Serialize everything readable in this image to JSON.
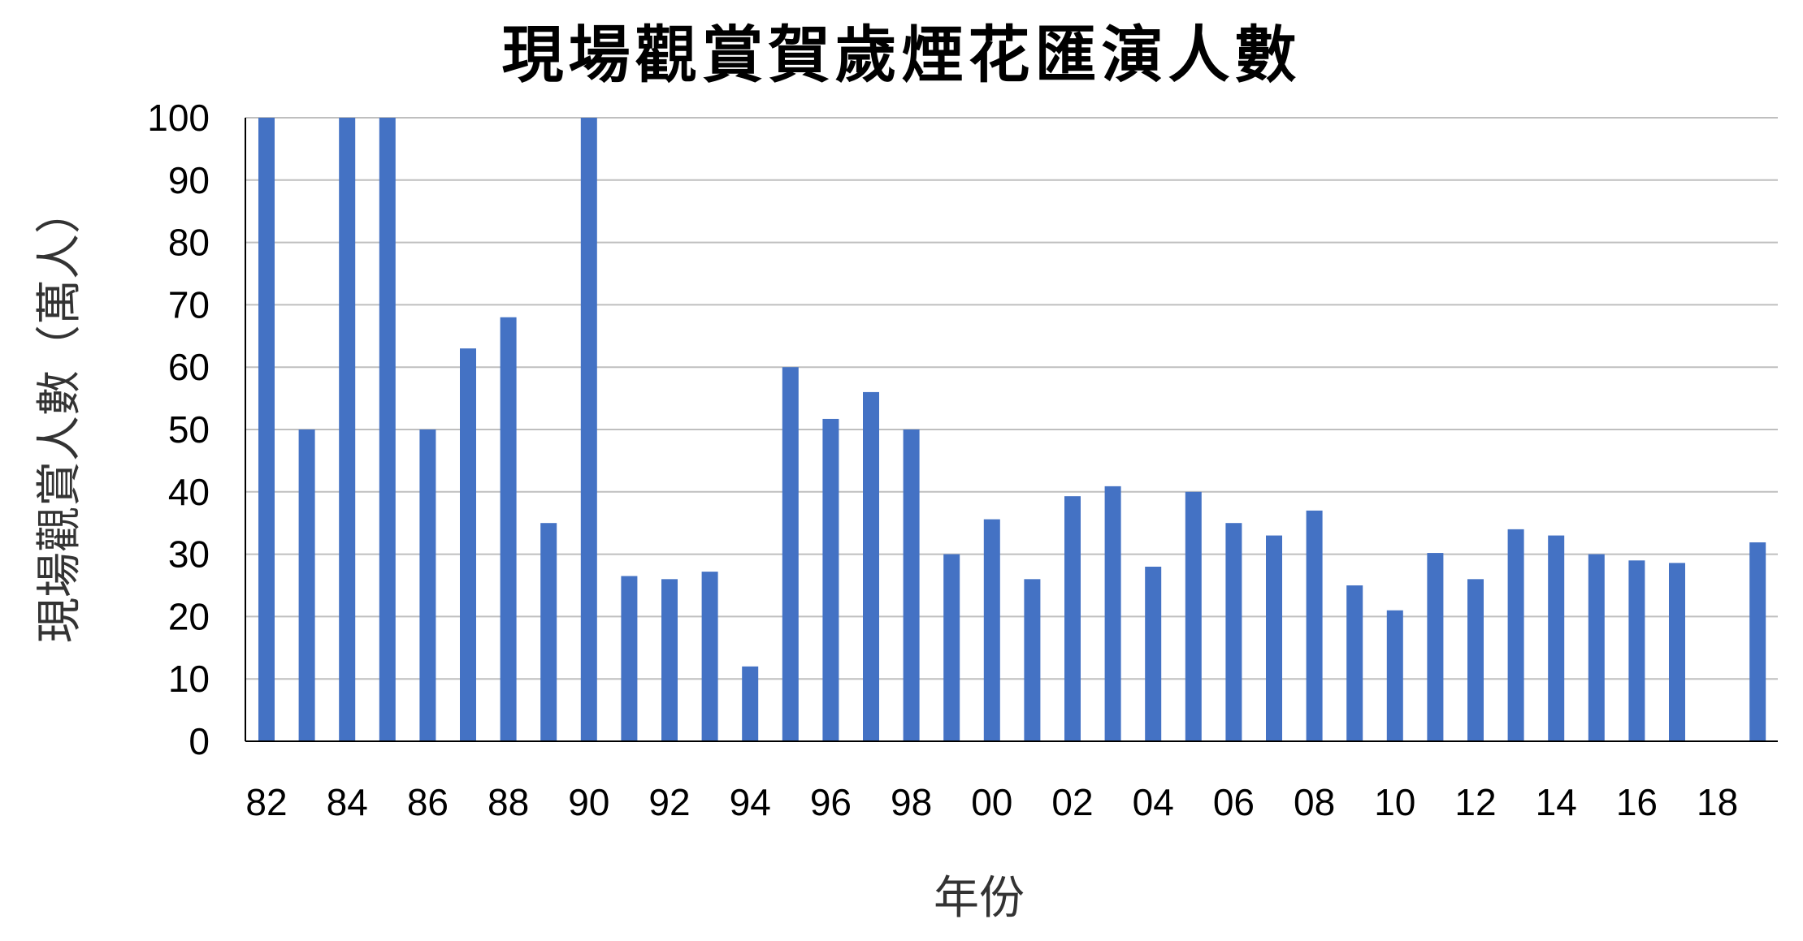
{
  "chart_data": {
    "type": "bar",
    "title": "現場觀賞賀歲煙花匯演人數",
    "xlabel": "年份",
    "ylabel": "現場觀賞人數（萬人）",
    "ylim": [
      0,
      100
    ],
    "yticks": [
      0,
      10,
      20,
      30,
      40,
      50,
      60,
      70,
      80,
      90,
      100
    ],
    "grid": true,
    "legend": "none",
    "categories": [
      "82",
      "83",
      "84",
      "85",
      "86",
      "87",
      "88",
      "89",
      "90",
      "91",
      "92",
      "93",
      "94",
      "95",
      "96",
      "97",
      "98",
      "99",
      "00",
      "01",
      "02",
      "03",
      "04",
      "05",
      "06",
      "07",
      "08",
      "09",
      "10",
      "11",
      "12",
      "13",
      "14",
      "15",
      "16",
      "17",
      "18",
      "19"
    ],
    "category_tick_labels": [
      "82",
      "84",
      "86",
      "88",
      "90",
      "92",
      "94",
      "96",
      "98",
      "00",
      "02",
      "04",
      "06",
      "08",
      "10",
      "12",
      "14",
      "16",
      "18"
    ],
    "series": [
      {
        "values": [
          100,
          50,
          100,
          100,
          50,
          63,
          68,
          35,
          100,
          26.5,
          26,
          27.2,
          12,
          60,
          51.7,
          56,
          50,
          30,
          35.6,
          26,
          39.3,
          40.9,
          28,
          40,
          35,
          33,
          37,
          25,
          21,
          30.2,
          26,
          34,
          33,
          30,
          29,
          28.6,
          null,
          31.9
        ]
      }
    ],
    "colors": {
      "bar": "#4472C4",
      "grid": "#BFBFBF",
      "axis": "#000000"
    }
  }
}
